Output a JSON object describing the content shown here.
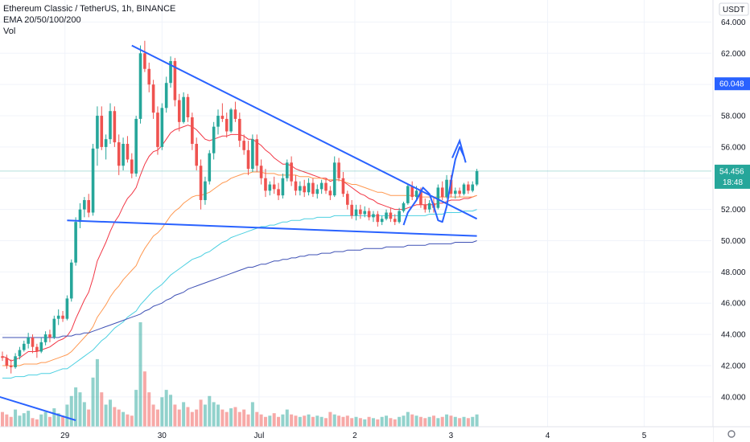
{
  "legend": {
    "symbol_line": "Ethereum Classic / TetherUS, 1h, BINANCE",
    "ema_line": "EMA 20/50/100/200",
    "vol_line": "Vol"
  },
  "chart_data": {
    "type": "candlestick",
    "symbol": "Ethereum Classic / TetherUS",
    "interval": "1h",
    "exchange": "BINANCE",
    "currency": "USDT",
    "y_ticks": [
      "40.000",
      "42.000",
      "44.000",
      "46.000",
      "48.000",
      "50.000",
      "52.000",
      "54.000",
      "56.000",
      "58.000",
      "60.000",
      "62.000",
      "64.000"
    ],
    "ylim": [
      38.5,
      65.0
    ],
    "x_ticks": [
      "29",
      "30",
      "Jul",
      "2",
      "3",
      "4",
      "5"
    ],
    "last_price": "54.456",
    "countdown": "18:48",
    "marked_price": "60.048",
    "colors": {
      "up": "#26a69a",
      "down": "#ef5350",
      "ema20": "#f23645",
      "ema50": "#ff9850",
      "ema100": "#4dd0e1",
      "ema200": "#3f51b5",
      "drawing": "#2962ff",
      "price_tag": "#26a69a",
      "marker_tag": "#2962ff"
    },
    "candles_ohlc": [
      [
        42.6,
        42.9,
        42.3,
        42.5
      ],
      [
        42.5,
        42.7,
        41.8,
        42.0
      ],
      [
        42.0,
        42.4,
        41.5,
        41.9
      ],
      [
        41.9,
        42.8,
        41.8,
        42.6
      ],
      [
        42.6,
        43.2,
        42.4,
        43.0
      ],
      [
        43.0,
        43.6,
        42.9,
        43.4
      ],
      [
        43.4,
        44.1,
        43.1,
        43.8
      ],
      [
        43.8,
        44.0,
        42.8,
        43.2
      ],
      [
        43.2,
        43.4,
        42.5,
        42.9
      ],
      [
        42.9,
        43.8,
        42.8,
        43.5
      ],
      [
        43.5,
        44.2,
        43.3,
        44.0
      ],
      [
        44.0,
        44.3,
        43.5,
        43.8
      ],
      [
        43.8,
        45.2,
        43.7,
        45.0
      ],
      [
        45.0,
        45.6,
        44.6,
        45.2
      ],
      [
        45.2,
        45.5,
        44.8,
        45.0
      ],
      [
        45.0,
        46.5,
        44.9,
        46.3
      ],
      [
        46.3,
        48.8,
        46.1,
        48.6
      ],
      [
        48.6,
        51.5,
        48.4,
        51.2
      ],
      [
        51.2,
        52.4,
        50.8,
        52.0
      ],
      [
        52.0,
        52.8,
        51.5,
        52.6
      ],
      [
        52.6,
        53.0,
        51.5,
        51.8
      ],
      [
        51.8,
        56.2,
        51.6,
        55.9
      ],
      [
        55.9,
        58.6,
        54.8,
        58.0
      ],
      [
        58.0,
        58.6,
        55.8,
        56.0
      ],
      [
        56.0,
        56.8,
        55.2,
        56.5
      ],
      [
        56.5,
        58.8,
        56.2,
        58.3
      ],
      [
        58.3,
        58.6,
        56.0,
        56.3
      ],
      [
        56.3,
        56.8,
        54.2,
        54.8
      ],
      [
        54.8,
        56.6,
        54.5,
        56.2
      ],
      [
        56.2,
        56.7,
        55.0,
        55.2
      ],
      [
        55.2,
        55.6,
        54.0,
        54.3
      ],
      [
        54.3,
        58.0,
        54.1,
        57.8
      ],
      [
        57.8,
        62.5,
        57.5,
        62.0
      ],
      [
        62.0,
        62.8,
        60.8,
        61.0
      ],
      [
        61.0,
        61.4,
        59.5,
        60.0
      ],
      [
        60.0,
        60.3,
        57.8,
        58.2
      ],
      [
        58.2,
        58.6,
        55.5,
        56.0
      ],
      [
        56.0,
        58.8,
        55.8,
        58.5
      ],
      [
        58.5,
        60.5,
        58.2,
        60.1
      ],
      [
        60.1,
        61.8,
        59.8,
        61.5
      ],
      [
        61.5,
        61.7,
        58.6,
        59.0
      ],
      [
        59.0,
        59.4,
        57.0,
        57.6
      ],
      [
        57.6,
        59.5,
        57.5,
        59.2
      ],
      [
        59.2,
        59.4,
        57.6,
        57.9
      ],
      [
        57.9,
        58.2,
        55.8,
        56.2
      ],
      [
        56.2,
        56.6,
        54.5,
        54.8
      ],
      [
        54.8,
        55.2,
        52.0,
        52.6
      ],
      [
        52.6,
        54.1,
        52.3,
        53.8
      ],
      [
        53.8,
        55.8,
        53.6,
        55.6
      ],
      [
        55.6,
        57.6,
        55.2,
        57.3
      ],
      [
        57.3,
        58.4,
        56.8,
        58.0
      ],
      [
        58.0,
        58.8,
        57.6,
        57.8
      ],
      [
        57.8,
        58.2,
        56.6,
        57.0
      ],
      [
        57.0,
        58.5,
        56.9,
        58.4
      ],
      [
        58.4,
        58.9,
        57.6,
        57.8
      ],
      [
        57.8,
        58.2,
        56.0,
        56.4
      ],
      [
        56.4,
        56.8,
        55.5,
        55.8
      ],
      [
        55.8,
        56.4,
        54.2,
        54.6
      ],
      [
        54.6,
        56.8,
        54.4,
        56.5
      ],
      [
        56.5,
        56.8,
        54.4,
        54.8
      ],
      [
        54.8,
        55.2,
        53.6,
        54.0
      ],
      [
        54.0,
        54.6,
        52.8,
        53.2
      ],
      [
        53.2,
        53.8,
        52.9,
        53.6
      ],
      [
        53.6,
        54.1,
        53.0,
        53.3
      ],
      [
        53.3,
        53.7,
        52.6,
        52.9
      ],
      [
        52.9,
        54.3,
        52.7,
        54.0
      ],
      [
        54.0,
        55.2,
        53.8,
        55.0
      ],
      [
        55.0,
        55.4,
        53.5,
        53.8
      ],
      [
        53.8,
        54.2,
        52.9,
        53.2
      ],
      [
        53.2,
        53.8,
        52.9,
        53.5
      ],
      [
        53.5,
        53.9,
        52.8,
        53.1
      ],
      [
        53.1,
        54.0,
        52.9,
        53.7
      ],
      [
        53.7,
        54.0,
        52.8,
        53.0
      ],
      [
        53.0,
        53.6,
        52.7,
        53.3
      ],
      [
        53.3,
        53.9,
        53.0,
        53.7
      ],
      [
        53.7,
        54.0,
        53.0,
        53.2
      ],
      [
        53.2,
        53.5,
        52.6,
        52.9
      ],
      [
        52.9,
        55.4,
        52.8,
        55.0
      ],
      [
        55.0,
        55.3,
        53.8,
        54.0
      ],
      [
        54.0,
        54.4,
        52.8,
        53.0
      ],
      [
        53.0,
        53.2,
        52.0,
        52.3
      ],
      [
        52.3,
        52.6,
        51.4,
        51.6
      ],
      [
        51.6,
        52.3,
        51.3,
        52.0
      ],
      [
        52.0,
        52.3,
        51.4,
        51.7
      ],
      [
        51.7,
        52.2,
        51.5,
        51.9
      ],
      [
        51.9,
        52.1,
        51.3,
        51.5
      ],
      [
        51.5,
        51.9,
        51.2,
        51.7
      ],
      [
        51.7,
        51.9,
        50.9,
        51.2
      ],
      [
        51.2,
        51.6,
        51.0,
        51.4
      ],
      [
        51.4,
        52.0,
        51.3,
        51.8
      ],
      [
        51.8,
        52.1,
        51.2,
        51.4
      ],
      [
        51.4,
        51.7,
        51.0,
        51.2
      ],
      [
        51.2,
        52.1,
        51.1,
        51.9
      ],
      [
        51.9,
        52.5,
        51.8,
        52.4
      ],
      [
        52.4,
        53.6,
        52.3,
        53.5
      ],
      [
        53.5,
        53.8,
        52.6,
        52.8
      ],
      [
        52.8,
        53.5,
        52.6,
        53.2
      ],
      [
        53.2,
        53.4,
        52.1,
        52.3
      ],
      [
        52.3,
        52.7,
        51.8,
        52.0
      ],
      [
        52.0,
        52.6,
        51.8,
        52.4
      ],
      [
        52.4,
        52.8,
        51.8,
        52.1
      ],
      [
        52.1,
        53.6,
        52.0,
        53.4
      ],
      [
        53.4,
        53.8,
        52.6,
        52.8
      ],
      [
        52.8,
        54.2,
        52.7,
        53.9
      ],
      [
        53.9,
        54.2,
        52.8,
        53.0
      ],
      [
        53.0,
        53.4,
        52.7,
        53.2
      ],
      [
        53.2,
        53.4,
        52.8,
        53.0
      ],
      [
        53.0,
        53.7,
        52.9,
        53.6
      ],
      [
        53.6,
        53.8,
        53.0,
        53.2
      ],
      [
        53.2,
        53.8,
        53.1,
        53.6
      ],
      [
        53.6,
        54.6,
        53.5,
        54.456
      ]
    ],
    "volume": [
      12,
      10,
      8,
      14,
      9,
      11,
      13,
      7,
      6,
      10,
      12,
      8,
      15,
      11,
      9,
      18,
      25,
      32,
      28,
      20,
      14,
      40,
      55,
      28,
      18,
      22,
      16,
      14,
      12,
      10,
      9,
      30,
      85,
      45,
      28,
      18,
      14,
      24,
      30,
      26,
      18,
      14,
      20,
      16,
      12,
      14,
      22,
      18,
      25,
      20,
      18,
      14,
      12,
      15,
      16,
      12,
      14,
      10,
      20,
      12,
      10,
      8,
      9,
      11,
      8,
      10,
      14,
      10,
      9,
      8,
      9,
      10,
      8,
      9,
      8,
      7,
      12,
      10,
      9,
      8,
      9,
      7,
      8,
      7,
      6,
      8,
      7,
      6,
      8,
      9,
      7,
      6,
      8,
      9,
      12,
      10,
      9,
      8,
      7,
      8,
      9,
      7,
      8,
      10,
      9,
      8,
      7,
      8,
      7,
      8,
      10
    ],
    "ema_series": [
      {
        "name": "EMA 20",
        "values": [
          42.6,
          42.5,
          42.3,
          42.4,
          42.5,
          42.7,
          42.9,
          42.9,
          42.9,
          43.0,
          43.1,
          43.2,
          43.4,
          43.6,
          43.7,
          43.9,
          44.3,
          45.0,
          45.6,
          46.2,
          46.7,
          47.6,
          48.7,
          49.3,
          49.9,
          50.6,
          51.2,
          51.6,
          52.2,
          52.7,
          53.0,
          53.4,
          54.2,
          54.9,
          55.4,
          55.7,
          55.8,
          56.1,
          56.5,
          56.9,
          57.1,
          57.2,
          57.3,
          57.4,
          57.3,
          57.1,
          56.8,
          56.5,
          56.4,
          56.5,
          56.6,
          56.7,
          56.7,
          56.8,
          56.8,
          56.8,
          56.7,
          56.5,
          56.5,
          56.3,
          56.1,
          55.8,
          55.6,
          55.3,
          55.1,
          54.9,
          54.9,
          54.8,
          54.6,
          54.5,
          54.4,
          54.3,
          54.2,
          54.1,
          54.0,
          54.0,
          53.8,
          53.9,
          53.9,
          53.8,
          53.6,
          53.4,
          53.2,
          53.0,
          52.9,
          52.7,
          52.6,
          52.4,
          52.3,
          52.2,
          52.1,
          52.0,
          52.0,
          52.0,
          52.1,
          52.2,
          52.3,
          52.3,
          52.3,
          52.3,
          52.3,
          52.4,
          52.4,
          52.5,
          52.6,
          52.6,
          52.6,
          52.7,
          52.7,
          52.8,
          52.9
        ]
      },
      {
        "name": "EMA 50",
        "values": [
          42.0,
          42.0,
          42.0,
          42.0,
          42.0,
          42.1,
          42.1,
          42.1,
          42.1,
          42.2,
          42.2,
          42.3,
          42.4,
          42.5,
          42.6,
          42.7,
          42.9,
          43.2,
          43.5,
          43.8,
          44.1,
          44.5,
          45.1,
          45.5,
          45.9,
          46.4,
          46.8,
          47.1,
          47.5,
          47.8,
          48.1,
          48.4,
          49.0,
          49.5,
          49.9,
          50.3,
          50.5,
          50.8,
          51.2,
          51.6,
          51.9,
          52.1,
          52.4,
          52.6,
          52.8,
          52.9,
          52.9,
          53.0,
          53.1,
          53.3,
          53.5,
          53.7,
          53.8,
          54.0,
          54.1,
          54.2,
          54.3,
          54.3,
          54.4,
          54.4,
          54.4,
          54.3,
          54.3,
          54.3,
          54.2,
          54.2,
          54.2,
          54.2,
          54.2,
          54.1,
          54.1,
          54.1,
          54.0,
          54.0,
          54.0,
          53.9,
          53.9,
          53.9,
          53.9,
          53.8,
          53.7,
          53.6,
          53.6,
          53.5,
          53.4,
          53.3,
          53.2,
          53.1,
          53.1,
          53.0,
          52.9,
          52.9,
          52.9,
          52.9,
          52.9,
          52.9,
          52.9,
          52.8,
          52.8,
          52.8,
          52.8,
          52.8,
          52.8,
          52.8,
          52.8,
          52.8,
          52.8,
          52.8,
          52.8,
          52.8,
          52.9
        ]
      },
      {
        "name": "EMA 100",
        "values": [
          41.2,
          41.2,
          41.2,
          41.3,
          41.3,
          41.3,
          41.4,
          41.4,
          41.4,
          41.5,
          41.5,
          41.5,
          41.6,
          41.7,
          41.8,
          41.8,
          42.0,
          42.2,
          42.4,
          42.6,
          42.8,
          43.0,
          43.3,
          43.6,
          43.8,
          44.1,
          44.4,
          44.6,
          44.8,
          45.1,
          45.3,
          45.5,
          45.9,
          46.2,
          46.5,
          46.8,
          47.0,
          47.2,
          47.5,
          47.8,
          48.0,
          48.2,
          48.4,
          48.6,
          48.8,
          48.9,
          49.0,
          49.2,
          49.3,
          49.5,
          49.7,
          49.9,
          50.0,
          50.2,
          50.3,
          50.4,
          50.5,
          50.6,
          50.7,
          50.8,
          50.9,
          50.9,
          51.0,
          51.0,
          51.1,
          51.2,
          51.2,
          51.3,
          51.3,
          51.3,
          51.4,
          51.4,
          51.4,
          51.5,
          51.5,
          51.5,
          51.5,
          51.6,
          51.6,
          51.6,
          51.6,
          51.6,
          51.6,
          51.6,
          51.6,
          51.6,
          51.6,
          51.6,
          51.6,
          51.6,
          51.6,
          51.6,
          51.6,
          51.6,
          51.6,
          51.6,
          51.6,
          51.6,
          51.6,
          51.7,
          51.7,
          51.7,
          51.7,
          51.8,
          51.8,
          51.8,
          51.8,
          51.9,
          51.9,
          51.9,
          52.0
        ]
      },
      {
        "name": "EMA 200",
        "values": [
          43.8,
          43.8,
          43.8,
          43.8,
          43.8,
          43.8,
          43.8,
          43.8,
          43.8,
          43.8,
          43.8,
          43.8,
          43.8,
          43.8,
          43.9,
          43.9,
          43.9,
          44.0,
          44.0,
          44.1,
          44.1,
          44.2,
          44.3,
          44.4,
          44.5,
          44.6,
          44.7,
          44.8,
          44.9,
          45.0,
          45.1,
          45.2,
          45.3,
          45.5,
          45.6,
          45.8,
          45.9,
          46.0,
          46.2,
          46.3,
          46.5,
          46.6,
          46.7,
          46.9,
          47.0,
          47.1,
          47.2,
          47.3,
          47.4,
          47.5,
          47.6,
          47.7,
          47.8,
          47.9,
          48.0,
          48.1,
          48.2,
          48.3,
          48.3,
          48.4,
          48.5,
          48.5,
          48.6,
          48.7,
          48.7,
          48.8,
          48.8,
          48.9,
          48.9,
          49.0,
          49.0,
          49.1,
          49.1,
          49.1,
          49.2,
          49.2,
          49.2,
          49.3,
          49.3,
          49.3,
          49.4,
          49.4,
          49.4,
          49.4,
          49.5,
          49.5,
          49.5,
          49.5,
          49.5,
          49.6,
          49.6,
          49.6,
          49.6,
          49.6,
          49.7,
          49.7,
          49.7,
          49.7,
          49.7,
          49.8,
          49.8,
          49.8,
          49.8,
          49.8,
          49.8,
          49.9,
          49.9,
          49.9,
          49.9,
          49.9,
          50.0
        ]
      }
    ],
    "drawings": [
      {
        "name": "upper-trendline",
        "from": [
          30,
          62.5
        ],
        "to": [
          110,
          51.4
        ]
      },
      {
        "name": "lower-trendline",
        "from": [
          15,
          51.3
        ],
        "to": [
          110,
          50.3
        ]
      },
      {
        "name": "left-support-line",
        "from": [
          -3,
          40.2
        ],
        "to": [
          17,
          38.5
        ]
      }
    ],
    "grid": true,
    "legend_position": "top-left",
    "price_axis_position": "right"
  }
}
